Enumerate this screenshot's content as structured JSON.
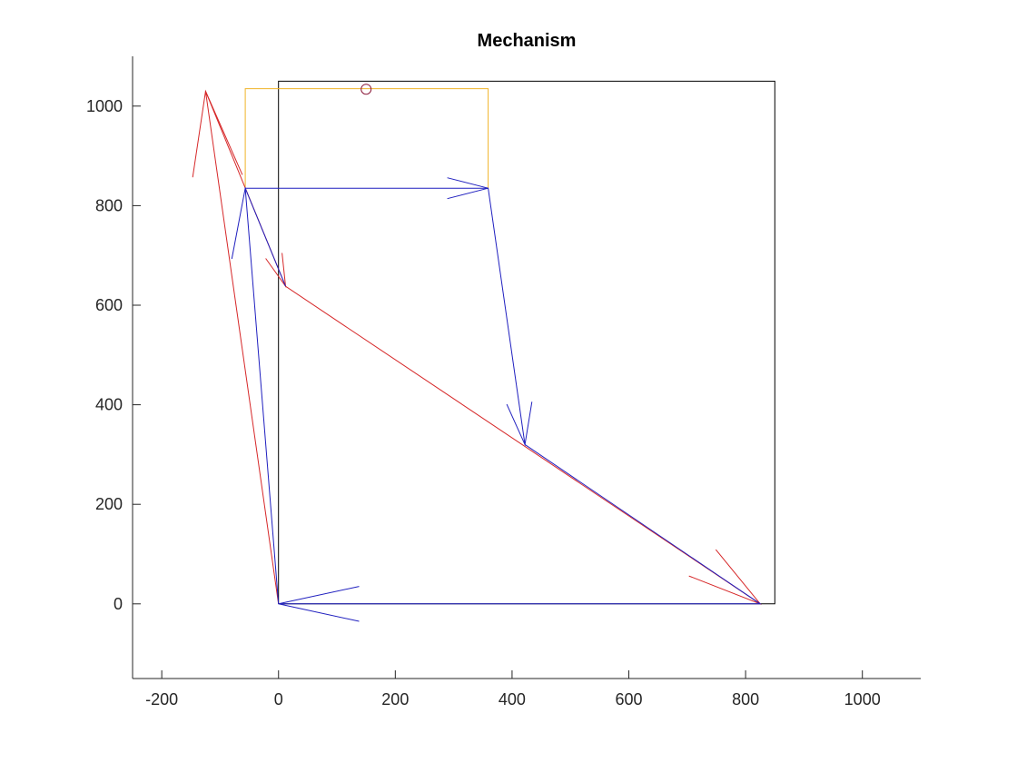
{
  "chart_data": {
    "type": "line",
    "title": "Mechanism",
    "xlabel": "",
    "ylabel": "",
    "xlim": [
      -250,
      1100
    ],
    "ylim": [
      -150,
      1100
    ],
    "xticks": [
      -200,
      0,
      200,
      400,
      600,
      800,
      1000
    ],
    "yticks": [
      0,
      200,
      400,
      600,
      800,
      1000
    ],
    "grid": false,
    "legend": "none",
    "colors": {
      "frame": "#000000",
      "red": "#d62728",
      "blue": "#1f1fbf",
      "orange": "#f0b429",
      "marker": "#8b1a3a",
      "axis": "#262626"
    },
    "series": [
      {
        "color": "frame",
        "polyline": [
          [
            0,
            0
          ],
          [
            850,
            0
          ],
          [
            850,
            1050
          ],
          [
            0,
            1050
          ],
          [
            0,
            0
          ]
        ]
      },
      {
        "color": "orange",
        "polyline": [
          [
            -57,
            835
          ],
          [
            -57,
            1035
          ],
          [
            359,
            1035
          ],
          [
            359,
            835
          ]
        ]
      },
      {
        "color": "red",
        "polyline": [
          [
            0,
            0
          ],
          [
            -125,
            1030
          ],
          [
            12,
            638
          ],
          [
            825,
            0
          ]
        ]
      },
      {
        "color": "red",
        "polyline": [
          [
            -147,
            857
          ],
          [
            -125,
            1030
          ],
          [
            -62,
            862
          ]
        ]
      },
      {
        "color": "red",
        "polyline": [
          [
            -22,
            694
          ],
          [
            12,
            638
          ],
          [
            6,
            705
          ]
        ]
      },
      {
        "color": "red",
        "polyline": [
          [
            703,
            56
          ],
          [
            825,
            0
          ],
          [
            749,
            109
          ]
        ]
      },
      {
        "color": "blue",
        "polyline": [
          [
            0,
            0
          ],
          [
            -57,
            835
          ],
          [
            359,
            835
          ],
          [
            422,
            320
          ],
          [
            825,
            0
          ],
          [
            0,
            0
          ]
        ]
      },
      {
        "color": "blue",
        "polyline": [
          [
            -80,
            693
          ],
          [
            -57,
            835
          ],
          [
            12,
            638
          ]
        ]
      },
      {
        "color": "blue",
        "polyline": [
          [
            289,
            856
          ],
          [
            359,
            835
          ],
          [
            289,
            814
          ]
        ]
      },
      {
        "color": "blue",
        "polyline": [
          [
            391,
            401
          ],
          [
            422,
            320
          ],
          [
            434,
            406
          ]
        ]
      },
      {
        "color": "blue",
        "polyline": [
          [
            138,
            35
          ],
          [
            0,
            0
          ],
          [
            138,
            -35
          ]
        ]
      }
    ],
    "markers": [
      {
        "color": "marker",
        "shape": "circle",
        "x": 150,
        "y": 1034
      }
    ]
  }
}
